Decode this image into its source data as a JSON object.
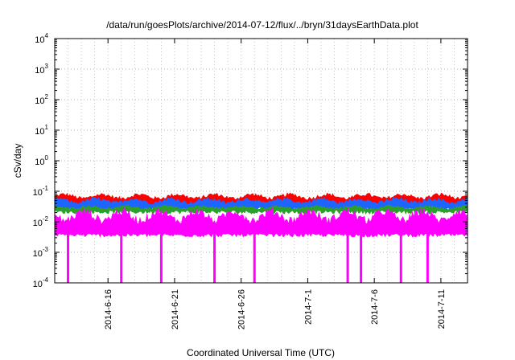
{
  "chart_data": {
    "type": "area",
    "title": "/data/run/goesPlots/archive/2014-07-12/flux/../bryn/31daysEarthData.plot",
    "xlabel": "Coordinated Universal Time (UTC)",
    "ylabel": "cSv/day",
    "y_scale": "log",
    "ylim": [
      0.0001,
      10000
    ],
    "xlim": [
      "2014-06-12",
      "2014-07-13"
    ],
    "grid": true,
    "y_ticks": [
      {
        "base": "10",
        "exp": "-4",
        "value": 0.0001
      },
      {
        "base": "10",
        "exp": "-3",
        "value": 0.001
      },
      {
        "base": "10",
        "exp": "-2",
        "value": 0.01
      },
      {
        "base": "10",
        "exp": "-1",
        "value": 0.1
      },
      {
        "base": "10",
        "exp": "0",
        "value": 1
      },
      {
        "base": "10",
        "exp": "1",
        "value": 10
      },
      {
        "base": "10",
        "exp": "2",
        "value": 100
      },
      {
        "base": "10",
        "exp": "3",
        "value": 1000
      },
      {
        "base": "10",
        "exp": "4",
        "value": 10000
      }
    ],
    "x_ticks": [
      {
        "label": "2014-6-16",
        "value": "2014-06-16"
      },
      {
        "label": "2014-6-21",
        "value": "2014-06-21"
      },
      {
        "label": "2014-6-26",
        "value": "2014-06-26"
      },
      {
        "label": "2014-7-1",
        "value": "2014-07-01"
      },
      {
        "label": "2014-7-6",
        "value": "2014-07-06"
      },
      {
        "label": "2014-7-11",
        "value": "2014-07-11"
      }
    ],
    "series": [
      {
        "color": "#ff0000",
        "range": [
          0.035,
          0.09
        ]
      },
      {
        "color": "#1e64ff",
        "range": [
          0.025,
          0.065
        ]
      },
      {
        "color": "#2ca02c",
        "range": [
          0.02,
          0.035
        ]
      },
      {
        "color": "#ff00ff",
        "range": [
          0.0035,
          0.03
        ]
      }
    ],
    "dips": [
      {
        "date": "2014-06-13",
        "value": 0.0001
      },
      {
        "date": "2014-06-17",
        "value": 0.0001
      },
      {
        "date": "2014-06-20",
        "value": 0.0001
      },
      {
        "date": "2014-06-24",
        "value": 0.0001
      },
      {
        "date": "2014-06-27",
        "value": 0.0001
      },
      {
        "date": "2014-07-04",
        "value": 0.0001
      },
      {
        "date": "2014-07-05",
        "value": 0.0001
      },
      {
        "date": "2014-07-08",
        "value": 0.0001
      },
      {
        "date": "2014-07-10",
        "value": 0.0001
      }
    ]
  }
}
